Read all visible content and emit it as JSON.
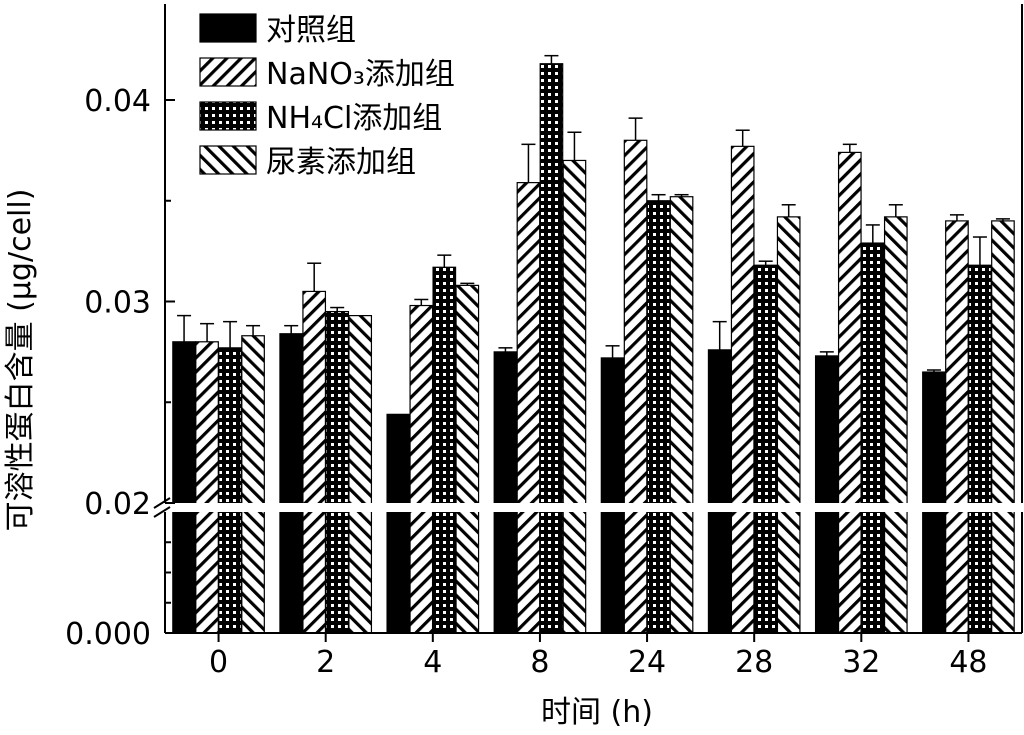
{
  "chart_data": {
    "type": "bar",
    "xlabel": "时间 (h)",
    "ylabel": "可溶性蛋白含量 (μg/cell)",
    "categories": [
      "0",
      "2",
      "4",
      "8",
      "24",
      "28",
      "32",
      "48"
    ],
    "y_axis_break": true,
    "lower_segment": {
      "ylim": [
        0.0,
        0.02
      ],
      "tick_labels": [
        "0.000",
        "0.02"
      ]
    },
    "upper_segment": {
      "ylim": [
        0.02,
        0.045
      ],
      "tick_labels": [
        "0.02",
        "0.03",
        "0.04"
      ]
    },
    "legend_position": "top-left",
    "series": [
      {
        "name": "对照组",
        "pattern": "solid",
        "values": [
          0.028,
          0.0284,
          0.0244,
          0.0275,
          0.0272,
          0.0276,
          0.0273,
          0.0265
        ],
        "errors": [
          0.0013,
          0.0004,
          0.0,
          0.0002,
          0.0006,
          0.0014,
          0.0002,
          0.0001
        ]
      },
      {
        "name": "NaNO₃添加组",
        "pattern": "diagonal-up",
        "values": [
          0.028,
          0.0305,
          0.0298,
          0.0359,
          0.038,
          0.0377,
          0.0374,
          0.034
        ],
        "errors": [
          0.0009,
          0.0014,
          0.0003,
          0.0019,
          0.0011,
          0.0008,
          0.0004,
          0.0003
        ]
      },
      {
        "name": "NH₄Cl添加组",
        "pattern": "crosshatch",
        "values": [
          0.0277,
          0.0295,
          0.0317,
          0.0418,
          0.035,
          0.0318,
          0.0329,
          0.0318
        ],
        "errors": [
          0.0013,
          0.0002,
          0.0006,
          0.0004,
          0.0003,
          0.0002,
          0.0009,
          0.0014
        ]
      },
      {
        "name": "尿素添加组",
        "pattern": "diagonal-down",
        "values": [
          0.0283,
          0.0293,
          0.0308,
          0.037,
          0.0352,
          0.0342,
          0.0342,
          0.034
        ],
        "errors": [
          0.0005,
          0.0,
          0.0001,
          0.0014,
          0.0001,
          0.0006,
          0.0006,
          0.0001
        ]
      }
    ],
    "colors": {
      "bar_fill": "#000000",
      "background": "#ffffff"
    }
  }
}
